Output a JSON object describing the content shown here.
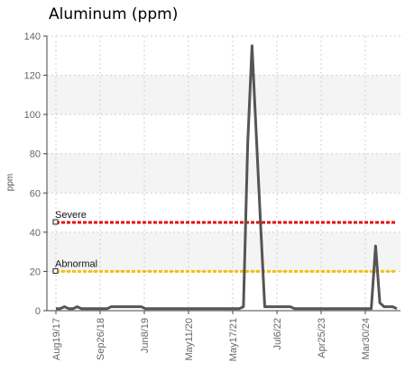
{
  "chart_data": {
    "type": "line",
    "title": "Aluminum (ppm)",
    "ylabel": "ppm",
    "xlabel": "",
    "ylim": [
      0,
      140
    ],
    "yticks": [
      0,
      20,
      40,
      60,
      80,
      100,
      120,
      140
    ],
    "x_tick_labels": [
      "Aug19/17",
      "Sep26/18",
      "Jun8/19",
      "May11/20",
      "May17/21",
      "Jul6/22",
      "Apr25/23",
      "Mar30/24"
    ],
    "grid": true,
    "series": [
      {
        "name": "",
        "color": "#555555",
        "values": [
          1,
          1,
          2,
          1,
          1,
          2,
          1,
          1,
          1,
          1,
          1,
          1,
          1,
          2,
          2,
          2,
          2,
          2,
          2,
          2,
          2,
          1,
          1,
          1,
          1,
          1,
          1,
          1,
          1,
          1,
          1,
          1,
          1,
          1,
          1,
          1,
          1,
          1,
          1,
          1,
          1,
          1,
          1,
          1,
          2,
          85,
          135,
          90,
          45,
          2,
          2,
          2,
          2,
          2,
          2,
          2,
          1,
          1,
          1,
          1,
          1,
          1,
          1,
          1,
          1,
          1,
          1,
          1,
          1,
          1,
          1,
          1,
          1,
          1,
          1,
          33,
          4,
          2,
          2,
          2,
          1
        ]
      }
    ],
    "limits": [
      {
        "label": "Severe",
        "value": 45,
        "color": "#e01010"
      },
      {
        "label": "Abnormal",
        "value": 20,
        "color": "#f2c00c"
      }
    ]
  }
}
